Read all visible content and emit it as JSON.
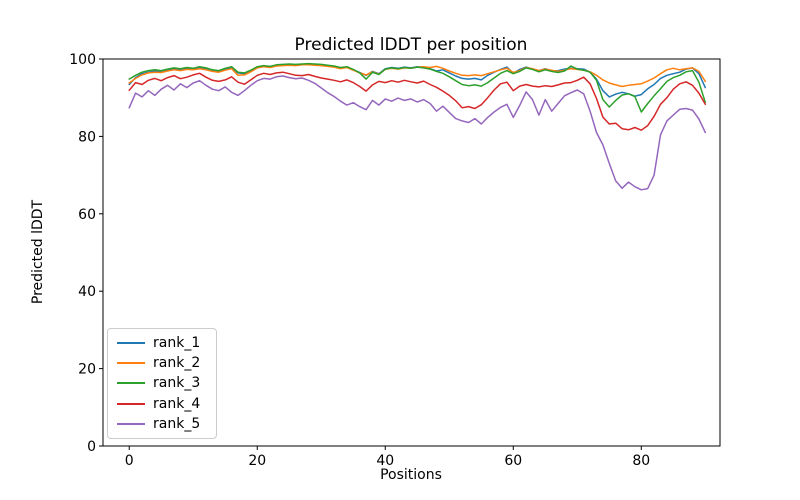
{
  "chart_data": {
    "type": "line",
    "title": "Predicted lDDT per position",
    "xlabel": "Positions",
    "ylabel": "Predicted lDDT",
    "xlim": [
      -4.1,
      92.3
    ],
    "ylim": [
      0,
      100
    ],
    "x_ticks": [
      0,
      20,
      40,
      60,
      80
    ],
    "y_ticks": [
      0,
      20,
      40,
      60,
      80,
      100
    ],
    "grid": false,
    "legend_position": "lower left",
    "x_start": 0,
    "x_step": 1,
    "n_points": 91,
    "series": [
      {
        "name": "rank_1",
        "color": "#1f77b4",
        "values": [
          93.4,
          95.2,
          96.2,
          96.6,
          96.9,
          96.7,
          97.1,
          97.4,
          97.2,
          97.5,
          97.3,
          97.7,
          97.4,
          96.9,
          96.7,
          97.3,
          97.7,
          96.4,
          96.2,
          96.9,
          97.8,
          98.1,
          97.9,
          98.3,
          98.4,
          98.5,
          98.4,
          98.5,
          98.6,
          98.5,
          98.4,
          98.2,
          98.0,
          97.6,
          97.9,
          97.2,
          96.5,
          95.8,
          96.8,
          96.2,
          97.5,
          97.8,
          97.6,
          97.9,
          97.7,
          98.0,
          97.8,
          97.5,
          96.9,
          97.2,
          96.4,
          95.6,
          95.0,
          94.8,
          95.0,
          94.6,
          95.8,
          96.6,
          97.3,
          97.9,
          96.3,
          97.3,
          97.9,
          97.4,
          97.0,
          97.5,
          96.9,
          97.0,
          97.4,
          97.6,
          97.5,
          97.4,
          96.6,
          94.8,
          91.8,
          90.2,
          90.9,
          91.4,
          91.0,
          90.4,
          90.8,
          92.3,
          93.4,
          95.0,
          95.8,
          96.2,
          96.6,
          97.4,
          97.7,
          96.2,
          92.6
        ]
      },
      {
        "name": "rank_2",
        "color": "#ff7f0e",
        "values": [
          93.8,
          95.0,
          95.9,
          96.4,
          96.6,
          96.5,
          96.9,
          97.2,
          97.0,
          97.3,
          97.2,
          97.5,
          97.2,
          96.8,
          96.6,
          97.1,
          97.5,
          95.8,
          95.9,
          96.7,
          97.7,
          98.0,
          97.8,
          98.2,
          98.3,
          98.4,
          98.3,
          98.5,
          98.5,
          98.4,
          98.3,
          98.1,
          97.9,
          97.5,
          97.8,
          97.1,
          96.4,
          95.9,
          96.7,
          96.1,
          97.3,
          97.6,
          97.4,
          97.7,
          97.6,
          97.9,
          98.0,
          97.8,
          98.1,
          97.6,
          96.9,
          96.3,
          95.8,
          95.7,
          95.9,
          95.7,
          96.2,
          96.7,
          97.2,
          97.6,
          96.5,
          97.0,
          97.8,
          97.5,
          97.0,
          97.4,
          97.1,
          96.8,
          97.1,
          97.5,
          97.3,
          97.1,
          96.7,
          95.8,
          94.6,
          93.8,
          93.3,
          92.9,
          93.2,
          93.4,
          93.6,
          94.3,
          95.1,
          96.2,
          97.2,
          97.6,
          97.2,
          97.5,
          97.7,
          96.8,
          94.2
        ]
      },
      {
        "name": "rank_3",
        "color": "#2ca02c",
        "values": [
          94.8,
          95.8,
          96.6,
          97.0,
          97.2,
          97.0,
          97.4,
          97.7,
          97.5,
          97.8,
          97.6,
          98.0,
          97.7,
          97.2,
          97.0,
          97.6,
          98.0,
          96.6,
          96.4,
          97.1,
          98.0,
          98.3,
          98.1,
          98.5,
          98.6,
          98.7,
          98.6,
          98.7,
          98.8,
          98.7,
          98.6,
          98.4,
          98.2,
          97.8,
          98.0,
          97.3,
          96.4,
          94.8,
          96.6,
          96.0,
          97.4,
          97.7,
          97.5,
          97.8,
          97.6,
          97.9,
          97.7,
          97.4,
          96.8,
          96.3,
          95.4,
          94.4,
          93.4,
          93.1,
          93.3,
          93.0,
          93.9,
          95.1,
          96.3,
          97.0,
          96.2,
          96.8,
          97.7,
          97.3,
          96.7,
          97.2,
          96.8,
          96.5,
          96.9,
          98.2,
          97.4,
          97.1,
          96.6,
          94.5,
          89.5,
          87.6,
          89.3,
          90.7,
          91.0,
          90.3,
          86.3,
          88.5,
          90.5,
          92.3,
          94.2,
          95.2,
          95.8,
          96.7,
          97.0,
          94.0,
          88.8
        ]
      },
      {
        "name": "rank_4",
        "color": "#d62728",
        "values": [
          91.9,
          93.9,
          93.4,
          94.5,
          95.0,
          94.4,
          95.2,
          95.7,
          94.9,
          95.3,
          95.9,
          96.3,
          95.3,
          94.5,
          94.2,
          94.6,
          95.4,
          94.0,
          93.5,
          94.6,
          95.8,
          96.3,
          96.0,
          96.4,
          96.6,
          96.2,
          95.8,
          95.7,
          96.0,
          95.5,
          95.1,
          94.8,
          94.5,
          94.1,
          94.6,
          93.9,
          92.9,
          91.7,
          93.3,
          94.2,
          93.9,
          94.4,
          94.0,
          94.5,
          94.1,
          93.8,
          94.3,
          93.4,
          92.7,
          91.7,
          90.6,
          89.2,
          87.4,
          87.7,
          87.2,
          88.2,
          90.0,
          92.0,
          93.6,
          94.0,
          91.8,
          93.0,
          93.4,
          93.0,
          92.8,
          93.1,
          92.9,
          93.3,
          93.8,
          93.9,
          94.5,
          95.3,
          93.6,
          89.8,
          85.0,
          83.2,
          83.4,
          82.0,
          81.7,
          82.3,
          81.6,
          82.8,
          85.2,
          88.3,
          90.0,
          92.2,
          93.6,
          94.1,
          93.2,
          91.2,
          88.3
        ]
      },
      {
        "name": "rank_5",
        "color": "#9467bd",
        "values": [
          87.4,
          91.2,
          90.2,
          91.8,
          90.6,
          92.2,
          93.2,
          92.0,
          93.6,
          92.6,
          93.8,
          94.4,
          93.2,
          92.2,
          91.8,
          92.8,
          91.4,
          90.6,
          91.8,
          93.2,
          94.4,
          95.0,
          94.8,
          95.4,
          95.6,
          95.2,
          94.9,
          95.1,
          94.5,
          93.7,
          92.5,
          91.3,
          90.3,
          89.1,
          88.1,
          88.7,
          87.7,
          86.9,
          89.3,
          88.1,
          89.7,
          89.1,
          89.9,
          89.3,
          89.7,
          88.9,
          89.5,
          88.5,
          86.5,
          87.8,
          86.2,
          84.6,
          84.0,
          83.6,
          84.6,
          83.2,
          84.9,
          86.3,
          87.5,
          88.3,
          84.9,
          88.0,
          91.5,
          89.5,
          85.5,
          89.5,
          86.5,
          88.5,
          90.5,
          91.3,
          92.0,
          91.0,
          86.5,
          81.0,
          77.8,
          73.0,
          68.5,
          66.6,
          68.2,
          67.0,
          66.2,
          66.5,
          70.0,
          80.4,
          84.0,
          85.5,
          87.0,
          87.2,
          86.8,
          84.5,
          81.0
        ]
      }
    ]
  }
}
